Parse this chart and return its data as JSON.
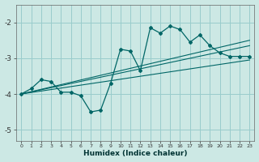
{
  "xlabel": "Humidex (Indice chaleur)",
  "bg_color": "#cce8e4",
  "line_color": "#006666",
  "grid_color": "#99cccc",
  "xlim": [
    -0.5,
    23.5
  ],
  "ylim": [
    -5.3,
    -1.5
  ],
  "yticks": [
    -5,
    -4,
    -3,
    -2
  ],
  "xticks": [
    0,
    1,
    2,
    3,
    4,
    5,
    6,
    7,
    8,
    9,
    10,
    11,
    12,
    13,
    14,
    15,
    16,
    17,
    18,
    19,
    20,
    21,
    22,
    23
  ],
  "data_x": [
    0,
    1,
    2,
    3,
    4,
    5,
    6,
    7,
    8,
    9,
    10,
    11,
    12,
    13,
    14,
    15,
    16,
    17,
    18,
    19,
    20,
    21,
    22,
    23
  ],
  "data_y": [
    -4.0,
    -3.85,
    -3.6,
    -3.65,
    -3.95,
    -3.95,
    -4.05,
    -4.5,
    -4.45,
    -3.7,
    -2.75,
    -2.8,
    -3.35,
    -2.15,
    -2.3,
    -2.1,
    -2.2,
    -2.55,
    -2.35,
    -2.65,
    -2.85,
    -2.95,
    -2.95,
    -2.95
  ],
  "trend1_x": [
    0,
    23
  ],
  "trend1_y": [
    -4.0,
    -2.65
  ],
  "trend2_x": [
    0,
    23
  ],
  "trend2_y": [
    -4.0,
    -2.5
  ],
  "trend3_x": [
    0,
    23
  ],
  "trend3_y": [
    -4.0,
    -3.05
  ]
}
